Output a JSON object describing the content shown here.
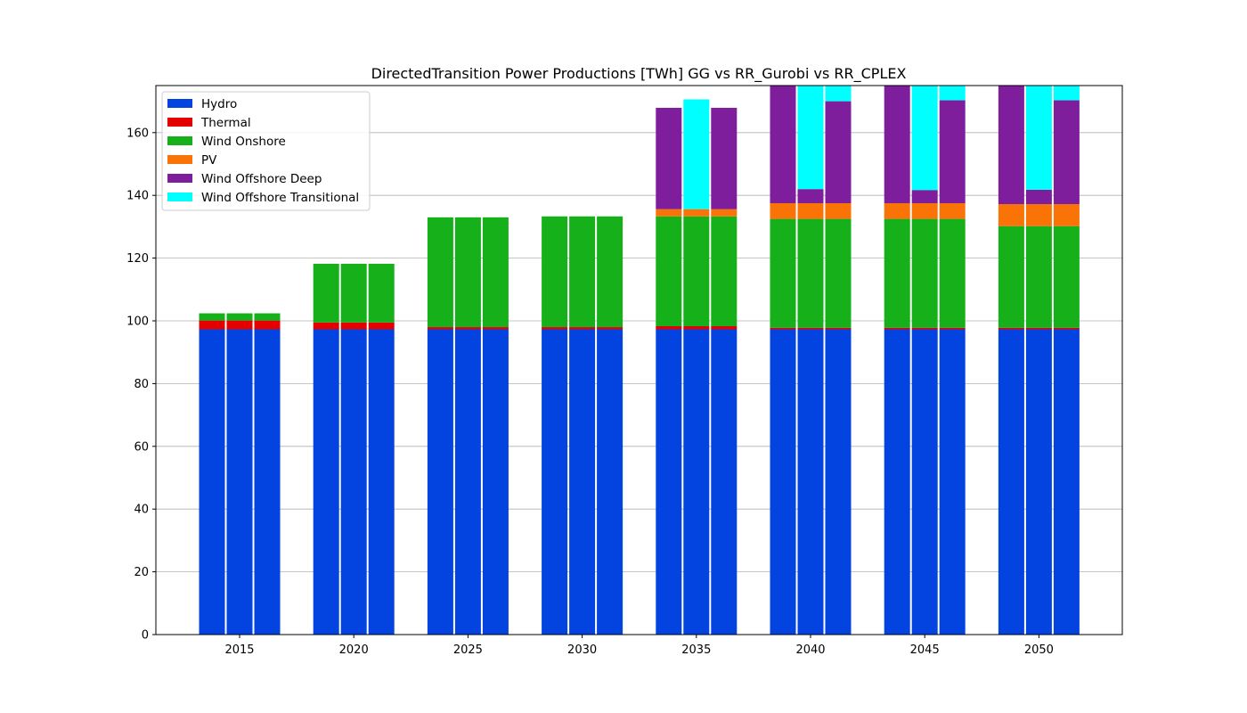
{
  "chart_data": {
    "type": "bar",
    "stacked": true,
    "title": "DirectedTransition Power Productions [TWh] GG vs RR_Gurobi vs RR_CPLEX",
    "xlabel": "",
    "ylabel": "",
    "ylim": [
      0,
      175
    ],
    "yticks": [
      0,
      20,
      40,
      60,
      80,
      100,
      120,
      140,
      160
    ],
    "grid": "y",
    "legend_position": "top-left",
    "categories": [
      "2015",
      "2020",
      "2025",
      "2030",
      "2035",
      "2040",
      "2045",
      "2050"
    ],
    "bars_per_category": 3,
    "series": [
      {
        "name": "Hydro",
        "color": "#0343df",
        "values": [
          [
            97.3,
            97.3,
            97.3
          ],
          [
            97.3,
            97.3,
            97.3
          ],
          [
            97.3,
            97.3,
            97.3
          ],
          [
            97.3,
            97.3,
            97.3
          ],
          [
            97.3,
            97.3,
            97.3
          ],
          [
            97.3,
            97.3,
            97.3
          ],
          [
            97.3,
            97.3,
            97.3
          ],
          [
            97.3,
            97.3,
            97.3
          ]
        ]
      },
      {
        "name": "Thermal",
        "color": "#e50000",
        "values": [
          [
            2.8,
            2.8,
            2.8
          ],
          [
            2.2,
            2.2,
            2.2
          ],
          [
            0.7,
            0.7,
            0.7
          ],
          [
            0.7,
            0.7,
            0.7
          ],
          [
            1.0,
            1.0,
            1.0
          ],
          [
            0.5,
            0.5,
            0.5
          ],
          [
            0.5,
            0.5,
            0.5
          ],
          [
            0.5,
            0.5,
            0.5
          ]
        ]
      },
      {
        "name": "Wind Onshore",
        "color": "#15b01a",
        "values": [
          [
            2.3,
            2.3,
            2.3
          ],
          [
            18.7,
            18.7,
            18.7
          ],
          [
            35.0,
            35.0,
            35.0
          ],
          [
            35.3,
            35.3,
            35.3
          ],
          [
            35.0,
            35.0,
            35.0
          ],
          [
            34.7,
            34.7,
            34.7
          ],
          [
            34.7,
            34.7,
            34.7
          ],
          [
            32.4,
            32.4,
            32.4
          ]
        ]
      },
      {
        "name": "PV",
        "color": "#f97306",
        "values": [
          [
            0,
            0,
            0
          ],
          [
            0,
            0,
            0
          ],
          [
            0,
            0,
            0
          ],
          [
            0,
            0,
            0
          ],
          [
            2.3,
            2.3,
            2.3
          ],
          [
            5.0,
            5.0,
            5.0
          ],
          [
            5.0,
            5.0,
            5.0
          ],
          [
            7.0,
            7.0,
            7.0
          ]
        ]
      },
      {
        "name": "Wind Offshore Deep",
        "color": "#7e1e9c",
        "values": [
          [
            0,
            0,
            0
          ],
          [
            0,
            0,
            0
          ],
          [
            0,
            0,
            0
          ],
          [
            0,
            0,
            0
          ],
          [
            32.3,
            0,
            32.3
          ],
          [
            45.0,
            4.5,
            32.5
          ],
          [
            45.0,
            4.2,
            32.8
          ],
          [
            45.0,
            4.6,
            33.1
          ]
        ]
      },
      {
        "name": "Wind Offshore Transitional",
        "color": "#00ffff",
        "values": [
          [
            0,
            0,
            0
          ],
          [
            0,
            0,
            0
          ],
          [
            0,
            0,
            0
          ],
          [
            0,
            0,
            0
          ],
          [
            0,
            35.0,
            0
          ],
          [
            0,
            40.0,
            5.0
          ],
          [
            0,
            40.0,
            5.0
          ],
          [
            0,
            40.0,
            5.0
          ]
        ]
      }
    ]
  }
}
